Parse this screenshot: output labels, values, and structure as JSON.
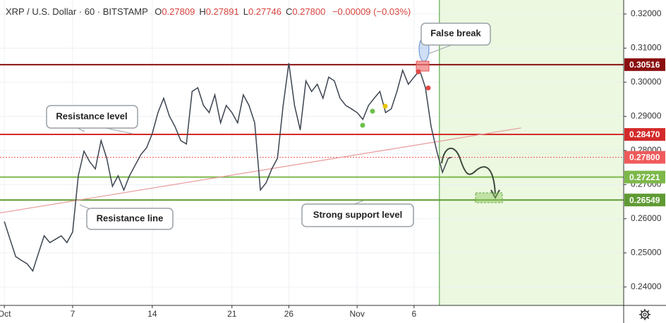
{
  "chart_data": {
    "type": "line",
    "title": "XRP / U.S. Dollar · 60 · BITSTAMP",
    "ohlc": [
      {
        "key": "O",
        "value": "0.27809"
      },
      {
        "key": "H",
        "value": "0.27891"
      },
      {
        "key": "L",
        "value": "0.27746"
      },
      {
        "key": "C",
        "value": "0.27800"
      }
    ],
    "change": "−0.00009 (−0.03%)",
    "x": [
      0,
      0.5,
      1,
      1.5,
      2,
      2.5,
      3,
      3.5,
      4,
      4.5,
      5,
      5.5,
      6,
      6.5,
      7,
      7.5,
      8,
      8.5,
      9,
      9.5,
      10,
      10.5,
      11,
      11.5,
      12,
      12.5,
      13,
      13.5,
      14,
      14.5,
      15,
      15.5,
      16,
      16.5,
      17,
      17.5,
      18,
      18.5,
      19,
      19.5,
      20,
      20.5,
      21,
      21.5,
      22,
      22.5,
      23,
      23.5,
      24,
      24.5,
      25,
      25.5,
      26,
      26.5,
      27,
      27.5,
      28,
      28.5,
      29,
      29.5,
      30,
      30.5,
      31,
      31.5,
      32,
      32.5,
      33,
      33.5,
      34,
      34.5,
      35,
      35.5,
      36,
      36.5,
      37,
      37.5,
      38,
      38.5,
      39,
      39.3
    ],
    "series": [
      {
        "color": "#3c4450",
        "values": [
          0.2592,
          0.254,
          0.2489,
          0.2478,
          0.2468,
          0.2447,
          0.2499,
          0.255,
          0.253,
          0.254,
          0.255,
          0.253,
          0.2561,
          0.2726,
          0.2798,
          0.2767,
          0.2746,
          0.2829,
          0.2777,
          0.2695,
          0.2726,
          0.2684,
          0.2726,
          0.2757,
          0.2788,
          0.2808,
          0.285,
          0.2911,
          0.2953,
          0.2901,
          0.287,
          0.2829,
          0.2819,
          0.2973,
          0.2984,
          0.2932,
          0.2911,
          0.2963,
          0.2881,
          0.2932,
          0.2911,
          0.2881,
          0.2963,
          0.2932,
          0.2881,
          0.2684,
          0.2705,
          0.2746,
          0.2777,
          0.2932,
          0.3056,
          0.2932,
          0.286,
          0.3004,
          0.2973,
          0.2994,
          0.2953,
          0.3015,
          0.3004,
          0.2953,
          0.2932,
          0.2922,
          0.2911,
          0.2891,
          0.2932,
          0.2953,
          0.2973,
          0.2911,
          0.2922,
          0.2973,
          0.3035,
          0.2994,
          0.3015,
          0.3035,
          0.2984,
          0.287,
          0.2798,
          0.2736,
          0.2777,
          0.278
        ]
      }
    ],
    "xlim": [
      -0.38,
      54.42
    ],
    "ylim": [
      0.2346,
      0.3241
    ],
    "xticks": [
      {
        "value": 0,
        "label": "Oct"
      },
      {
        "value": 6,
        "label": "7"
      },
      {
        "value": 13,
        "label": "14"
      },
      {
        "value": 20,
        "label": "21"
      },
      {
        "value": 25,
        "label": "26"
      },
      {
        "value": 31,
        "label": "Nov"
      },
      {
        "value": 36,
        "label": "6"
      }
    ],
    "yticks": [
      {
        "value": 0.32,
        "label": "0.32000"
      },
      {
        "value": 0.31,
        "label": "0.31000"
      },
      {
        "value": 0.3,
        "label": "0.30000"
      },
      {
        "value": 0.29,
        "label": "0.29000"
      },
      {
        "value": 0.28,
        "label": "0.28000"
      },
      {
        "value": 0.27,
        "label": "0.27000"
      },
      {
        "value": 0.26,
        "label": "0.26000"
      },
      {
        "value": 0.25,
        "label": "0.25000"
      },
      {
        "value": 0.24,
        "label": "0.24000"
      }
    ],
    "levels": [
      {
        "value": 0.30516,
        "label": "0.30516",
        "color": "#8b1010"
      },
      {
        "value": 0.2847,
        "label": "0.28470",
        "color": "#d42a2a"
      },
      {
        "value": 0.278,
        "label": "0.27800",
        "color": "#f05a5a",
        "dashed": true
      },
      {
        "value": 0.27221,
        "label": "0.27221",
        "color": "#7cb84a"
      },
      {
        "value": 0.26549,
        "label": "0.26549",
        "color": "#5f9a33"
      }
    ],
    "trendline": {
      "x": [
        -0.38,
        45.4
      ],
      "y": [
        0.2617,
        0.2866
      ],
      "color": "#e89a9a"
    },
    "forecast_start": 38.23,
    "annotations": [
      "False break",
      "Resistance level",
      "Resistance line",
      "Strong support level"
    ],
    "grid": true
  }
}
